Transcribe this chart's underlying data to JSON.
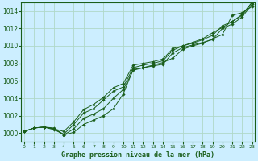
{
  "background_color": "#cceeff",
  "plot_bg_color": "#cceeff",
  "grid_color": "#b0d8c8",
  "line_color": "#1a5e1a",
  "marker_color": "#1a5e1a",
  "title": "Graphe pression niveau de la mer (hPa)",
  "xlim": [
    -0.3,
    23.3
  ],
  "ylim": [
    999.0,
    1015.0
  ],
  "yticks": [
    1000,
    1002,
    1004,
    1006,
    1008,
    1010,
    1012,
    1014
  ],
  "xticks": [
    0,
    1,
    2,
    3,
    4,
    5,
    6,
    7,
    8,
    9,
    10,
    11,
    12,
    13,
    14,
    15,
    16,
    17,
    18,
    19,
    20,
    21,
    22,
    23
  ],
  "series": [
    [
      1000.2,
      1000.6,
      1000.7,
      1000.6,
      999.8,
      1000.1,
      1001.0,
      1001.5,
      1002.0,
      1002.8,
      1004.5,
      1007.3,
      1007.5,
      1007.8,
      1008.1,
      1008.6,
      1009.6,
      1010.0,
      1010.3,
      1010.8,
      1011.3,
      1013.5,
      1013.8,
      1014.5
    ],
    [
      1000.2,
      1000.6,
      1000.7,
      1000.5,
      999.8,
      1000.5,
      1001.7,
      1002.2,
      1002.8,
      1004.0,
      1005.0,
      1007.2,
      1007.5,
      1007.7,
      1007.9,
      1009.2,
      1009.8,
      1010.1,
      1010.4,
      1010.7,
      1012.0,
      1012.5,
      1013.3,
      1014.8
    ],
    [
      1000.2,
      1000.6,
      1000.7,
      1000.4,
      999.9,
      1001.0,
      1002.3,
      1002.8,
      1003.8,
      1004.8,
      1005.3,
      1007.5,
      1007.8,
      1008.0,
      1008.3,
      1009.5,
      1010.0,
      1010.3,
      1010.7,
      1011.2,
      1012.3,
      1012.8,
      1013.6,
      1015.0
    ],
    [
      1000.2,
      1000.6,
      1000.7,
      1000.5,
      1000.2,
      1001.3,
      1002.7,
      1003.3,
      1004.1,
      1005.2,
      1005.7,
      1007.8,
      1008.0,
      1008.2,
      1008.5,
      1009.7,
      1010.0,
      1010.4,
      1010.8,
      1011.5,
      1012.1,
      1012.8,
      1013.5,
      1015.0
    ]
  ]
}
